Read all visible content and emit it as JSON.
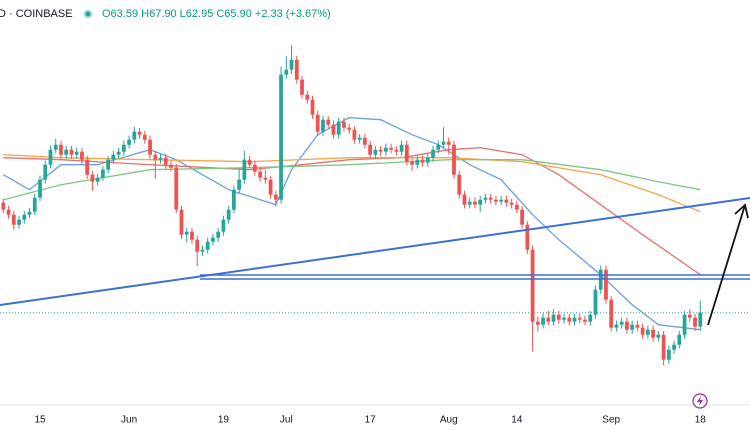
{
  "header": {
    "symbol": "D · COINBASE",
    "ohlc": "O63.59 H67.90 L62.95 C65.90 +2.33 (+3.67%)"
  },
  "chart_data": {
    "type": "candlestick",
    "categories": [
      null,
      null,
      null,
      null,
      null,
      null,
      null,
      "15",
      null,
      null,
      null,
      null,
      null,
      null,
      null,
      null,
      null,
      null,
      null,
      null,
      null,
      null,
      null,
      null,
      "Jun",
      null,
      null,
      null,
      null,
      null,
      null,
      null,
      null,
      null,
      null,
      null,
      null,
      null,
      null,
      null,
      null,
      null,
      "19",
      null,
      null,
      null,
      null,
      null,
      null,
      null,
      null,
      null,
      null,
      null,
      "Jul",
      null,
      null,
      null,
      null,
      null,
      null,
      null,
      null,
      null,
      null,
      null,
      null,
      null,
      null,
      null,
      "17",
      null,
      null,
      null,
      null,
      null,
      null,
      null,
      null,
      null,
      null,
      null,
      null,
      null,
      null,
      "Aug",
      null,
      null,
      null,
      null,
      null,
      null,
      null,
      null,
      null,
      null,
      null,
      null,
      "14",
      null,
      null,
      null,
      null,
      null,
      null,
      null,
      null,
      null,
      null,
      null,
      null,
      null,
      null,
      null,
      null,
      null,
      "Sep",
      null,
      null,
      null,
      null,
      null,
      null,
      null,
      null,
      null,
      null,
      null,
      null,
      null,
      null,
      null,
      null,
      "18"
    ],
    "open": [
      84.06,
      82.9,
      82.07,
      80.42,
      81.25,
      82.07,
      82.57,
      84.88,
      87.85,
      90.32,
      92.8,
      93.62,
      91.97,
      92.8,
      91.97,
      92.47,
      91.15,
      88.67,
      87.52,
      88.18,
      89.5,
      91.15,
      91.97,
      92.47,
      93.62,
      94.45,
      95.77,
      95.27,
      94.45,
      91.97,
      91.15,
      91.48,
      90.32,
      89.83,
      82.9,
      78.78,
      79.27,
      77.95,
      75.97,
      76.3,
      77.62,
      78.28,
      79.27,
      81.25,
      82.9,
      86.2,
      87.85,
      91.15,
      90.32,
      89.17,
      88.18,
      87.85,
      85.38,
      84.55,
      105.17,
      106.0,
      107.65,
      104.35,
      101.87,
      101.05,
      98.57,
      95.77,
      97.75,
      96.92,
      95.27,
      97.42,
      96.43,
      96.1,
      94.45,
      94.78,
      93.62,
      91.97,
      92.8,
      92.47,
      93.13,
      92.8,
      92.47,
      93.62,
      90.82,
      90.32,
      91.15,
      90.66,
      91.48,
      92.8,
      93.62,
      94.12,
      93.62,
      88.67,
      85.38,
      83.72,
      84.22,
      83.72,
      84.55,
      84.88,
      84.55,
      84.22,
      84.55,
      84.06,
      83.72,
      82.9,
      80.42,
      76.3,
      64.42,
      63.92,
      65.08,
      64.42,
      65.57,
      64.75,
      65.08,
      64.42,
      65.08,
      64.75,
      64.42,
      65.57,
      69.7,
      73.0,
      68.05,
      63.43,
      63.92,
      64.42,
      63.1,
      63.92,
      63.43,
      62.27,
      63.1,
      61.78,
      62.27,
      58.15,
      59.8,
      60.62,
      62.27,
      65.57,
      65.08,
      63.59
    ],
    "high": [
      84.7,
      83.5,
      82.7,
      81.9,
      82.7,
      83.2,
      85.5,
      88.5,
      91.0,
      93.5,
      94.6,
      94.3,
      93.4,
      93.4,
      93.1,
      93.1,
      91.8,
      89.3,
      88.8,
      90.1,
      91.8,
      92.6,
      93.1,
      94.3,
      95.1,
      96.6,
      96.4,
      95.9,
      95.1,
      92.6,
      92.1,
      92.1,
      91.0,
      90.5,
      83.5,
      79.9,
      79.9,
      78.6,
      77.0,
      78.3,
      78.9,
      79.9,
      81.9,
      83.5,
      86.9,
      89.5,
      92.6,
      91.8,
      91.0,
      89.8,
      89.5,
      88.5,
      86.0,
      106.5,
      108.3,
      110.0,
      108.3,
      105.0,
      102.5,
      101.7,
      99.2,
      98.4,
      98.4,
      97.6,
      98.1,
      98.1,
      97.1,
      96.7,
      95.4,
      95.4,
      94.3,
      93.4,
      93.4,
      93.8,
      93.8,
      93.4,
      94.3,
      94.3,
      91.5,
      91.8,
      91.8,
      92.1,
      93.4,
      94.3,
      96.5,
      94.8,
      94.3,
      89.3,
      86.0,
      84.9,
      84.9,
      85.2,
      85.5,
      85.5,
      85.2,
      85.2,
      85.2,
      84.7,
      84.4,
      83.5,
      81.0,
      77.0,
      65.3,
      65.8,
      66.2,
      66.5,
      66.2,
      65.7,
      65.7,
      65.7,
      65.7,
      65.4,
      66.2,
      70.4,
      73.7,
      73.7,
      68.7,
      64.6,
      65.1,
      65.1,
      64.6,
      64.6,
      64.1,
      63.8,
      63.8,
      62.9,
      62.9,
      60.5,
      61.3,
      62.9,
      66.2,
      66.5,
      65.7,
      67.9
    ],
    "low": [
      82.3,
      81.4,
      79.6,
      79.8,
      80.6,
      81.5,
      82.0,
      84.3,
      87.2,
      89.7,
      92.2,
      91.3,
      91.3,
      91.3,
      91.3,
      90.5,
      88.0,
      86.0,
      86.9,
      87.6,
      88.9,
      90.5,
      91.3,
      91.8,
      93.0,
      93.8,
      94.6,
      93.8,
      91.3,
      88.0,
      90.5,
      89.7,
      89.2,
      82.3,
      78.1,
      77.5,
      77.3,
      73.6,
      75.3,
      75.7,
      77.0,
      77.6,
      78.6,
      80.6,
      82.3,
      85.5,
      87.2,
      89.7,
      88.5,
      87.5,
      87.2,
      84.7,
      83.4,
      83.9,
      104.5,
      105.3,
      103.7,
      101.2,
      100.4,
      97.9,
      95.1,
      95.1,
      96.3,
      94.6,
      94.6,
      95.8,
      95.4,
      93.8,
      93.8,
      93.0,
      91.3,
      91.3,
      91.8,
      91.8,
      92.2,
      91.8,
      91.8,
      90.2,
      89.3,
      89.7,
      90.0,
      90.0,
      90.8,
      92.2,
      93.0,
      92.0,
      88.0,
      84.7,
      83.1,
      83.1,
      83.1,
      82.5,
      83.9,
      83.9,
      83.6,
      83.6,
      83.4,
      83.1,
      82.3,
      79.8,
      75.6,
      59.5,
      62.8,
      63.3,
      63.8,
      63.8,
      64.1,
      64.1,
      63.8,
      63.8,
      64.1,
      63.8,
      63.8,
      64.9,
      69.0,
      67.4,
      62.8,
      62.8,
      63.3,
      62.4,
      62.4,
      62.8,
      61.6,
      61.6,
      61.1,
      61.1,
      57.2,
      57.5,
      59.1,
      60.0,
      61.6,
      64.4,
      62.9,
      62.95
    ],
    "close": [
      82.9,
      82.07,
      80.42,
      81.25,
      82.07,
      82.57,
      84.88,
      87.85,
      90.32,
      92.8,
      93.62,
      91.97,
      92.8,
      91.97,
      92.47,
      91.15,
      88.67,
      87.52,
      88.18,
      89.5,
      91.15,
      91.97,
      92.47,
      93.62,
      94.45,
      95.77,
      95.27,
      94.45,
      91.97,
      91.15,
      91.48,
      90.32,
      89.83,
      82.9,
      78.78,
      79.27,
      77.95,
      75.97,
      76.3,
      77.62,
      78.28,
      79.27,
      81.25,
      82.9,
      86.2,
      87.85,
      91.15,
      90.32,
      89.17,
      88.18,
      87.85,
      85.38,
      84.55,
      105.17,
      106.0,
      107.65,
      104.35,
      101.87,
      101.05,
      98.57,
      95.77,
      97.75,
      96.92,
      95.27,
      97.42,
      96.43,
      96.1,
      94.45,
      94.78,
      93.62,
      91.97,
      92.8,
      92.47,
      93.13,
      92.8,
      92.47,
      93.62,
      90.82,
      90.32,
      91.15,
      90.66,
      91.48,
      92.8,
      93.62,
      94.12,
      93.62,
      88.67,
      85.38,
      83.72,
      84.22,
      83.72,
      84.55,
      84.88,
      84.55,
      84.22,
      84.55,
      84.06,
      83.72,
      82.9,
      80.42,
      76.3,
      64.42,
      63.92,
      65.08,
      64.42,
      65.57,
      64.75,
      65.08,
      64.42,
      65.08,
      64.75,
      64.42,
      65.57,
      69.7,
      73.0,
      68.05,
      63.43,
      63.92,
      64.42,
      63.1,
      63.92,
      63.43,
      62.27,
      63.1,
      61.78,
      62.27,
      58.15,
      59.8,
      60.62,
      62.27,
      65.57,
      65.08,
      63.59,
      65.9
    ],
    "up_color": "#26a69a",
    "down_color": "#ef5350",
    "last_price_color": "#26a69a",
    "ylim": [
      51.5,
      117.5
    ],
    "overlays": [
      {
        "color": "#6a9fe0",
        "x": [
          0,
          5,
          11,
          18,
          28,
          33,
          38,
          43,
          49,
          52,
          55,
          60,
          66,
          72,
          78,
          83,
          89,
          95,
          101,
          106,
          114,
          120,
          125,
          133
        ],
        "values": [
          88.67,
          86.2,
          90.32,
          90.32,
          92.8,
          91.15,
          88.67,
          86.2,
          84.55,
          83.72,
          89.5,
          95.27,
          98.08,
          97.75,
          95.27,
          93.62,
          90.32,
          87.85,
          82.07,
          77.95,
          72.17,
          67.23,
          63.92,
          63.1
        ]
      },
      {
        "color": "#e57373",
        "x": [
          0,
          11,
          28,
          47,
          57,
          66,
          76,
          85,
          91,
          99,
          106,
          114,
          122,
          133
        ],
        "values": [
          91.48,
          91.15,
          90.32,
          89.5,
          90.32,
          91.15,
          91.48,
          92.8,
          93.13,
          91.97,
          88.67,
          83.72,
          78.78,
          72.17
        ]
      },
      {
        "color": "#f5a54a",
        "x": [
          0,
          11,
          28,
          47,
          66,
          85,
          99,
          114,
          125,
          133
        ],
        "values": [
          91.97,
          91.48,
          91.15,
          90.82,
          91.48,
          91.48,
          90.82,
          88.67,
          85.38,
          82.57
        ]
      },
      {
        "color": "#81c784",
        "x": [
          0,
          11,
          28,
          47,
          66,
          85,
          99,
          114,
          125,
          133
        ],
        "values": [
          84.55,
          87.02,
          89.5,
          89.83,
          90.32,
          91.15,
          91.15,
          89.5,
          87.52,
          86.2
        ]
      }
    ]
  }
}
